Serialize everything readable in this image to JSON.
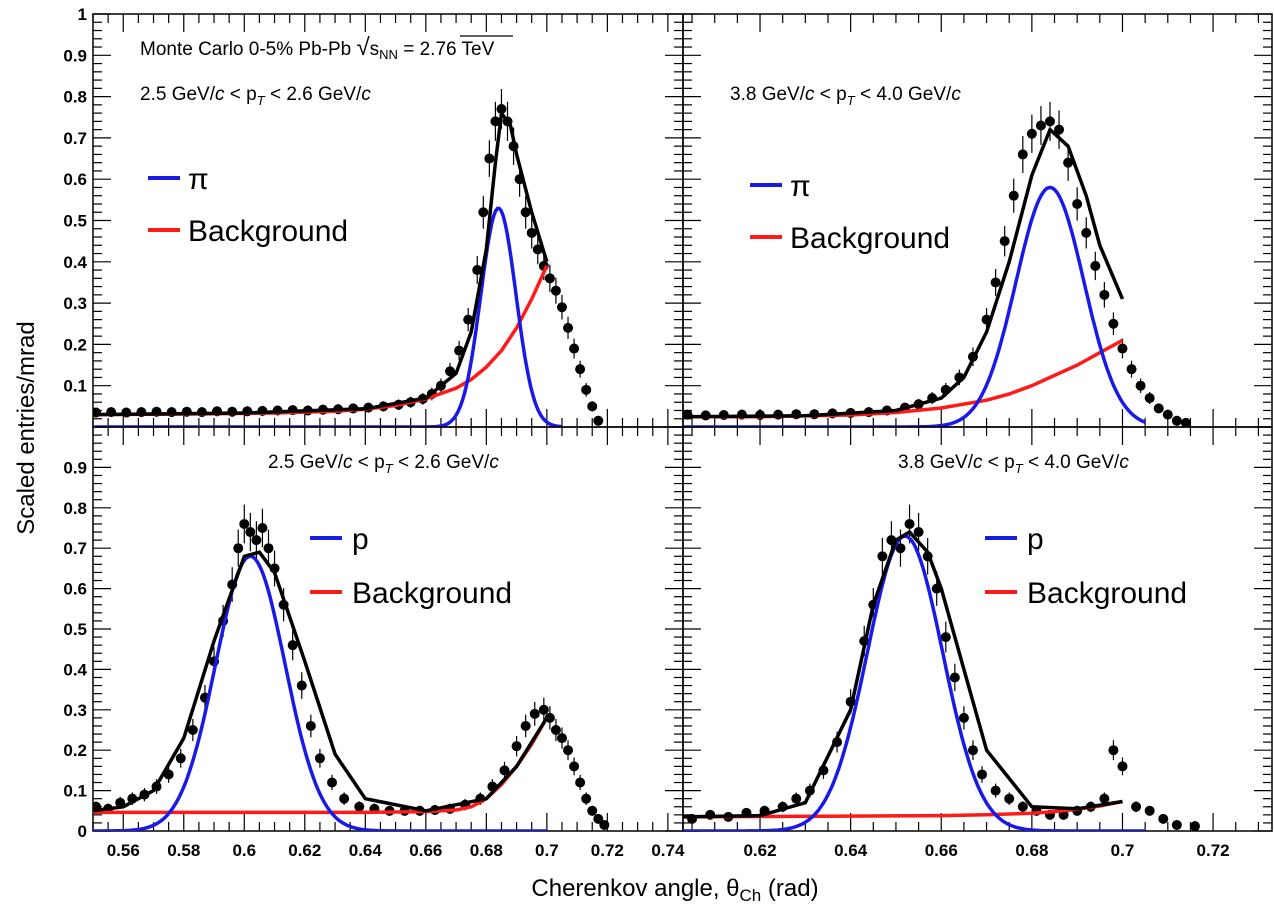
{
  "figure": {
    "ylabel": "Scaled entries/mrad",
    "xlabel_main": "Cherenkov angle, θ",
    "xlabel_sub": "Ch",
    "xlabel_unit": " (rad)",
    "ylim": [
      0,
      1.0
    ],
    "colors": {
      "data": "#000000",
      "signal": "#1a1ae6",
      "background": "#ff1a1a",
      "total": "#000000"
    }
  },
  "header": {
    "line1_prefix": "Monte Carlo 0-5% Pb-Pb ",
    "line1_sqrt": "√",
    "line1_s": "s",
    "line1_sub": "NN",
    "line1_suffix": " = 2.76 TeV"
  },
  "chart_data": [
    {
      "type": "scatter",
      "panel": "top-left",
      "annotation": {
        "prefix": "2.5 GeV/",
        "c1": "c",
        "mid": " < p",
        "sub": "T",
        "mid2": " < 2.6 GeV/",
        "c2": "c"
      },
      "legend": [
        {
          "label": "π",
          "color": "#1a1ae6"
        },
        {
          "label": "Background",
          "color": "#ff1a1a"
        }
      ],
      "xlim": [
        0.55,
        0.745
      ],
      "ylim": [
        0,
        1.0
      ],
      "xticks": [
        0.56,
        0.58,
        0.6,
        0.62,
        0.64,
        0.66,
        0.68,
        0.7,
        0.72,
        0.74
      ],
      "xticklabels": [
        "0.56",
        "0.58",
        "0.6",
        "0.62",
        "0.64",
        "0.66",
        "0.68",
        "0.7",
        "0.72",
        "0.74"
      ],
      "yticks": [
        0.1,
        0.2,
        0.3,
        0.4,
        0.5,
        0.6,
        0.7,
        0.8,
        0.9,
        1.0
      ],
      "yticklabels": [
        "0.1",
        "0.2",
        "0.3",
        "0.4",
        "0.5",
        "0.6",
        "0.7",
        "0.8",
        "0.9",
        "1"
      ],
      "series": [
        {
          "role": "data",
          "x": [
            0.551,
            0.556,
            0.561,
            0.566,
            0.571,
            0.576,
            0.581,
            0.586,
            0.591,
            0.596,
            0.601,
            0.606,
            0.611,
            0.616,
            0.621,
            0.626,
            0.631,
            0.636,
            0.641,
            0.646,
            0.651,
            0.655,
            0.659,
            0.662,
            0.665,
            0.668,
            0.671,
            0.674,
            0.677,
            0.679,
            0.681,
            0.683,
            0.685,
            0.687,
            0.689,
            0.691,
            0.693,
            0.695,
            0.697,
            0.699,
            0.701,
            0.703,
            0.705,
            0.707,
            0.709,
            0.711,
            0.713,
            0.715,
            0.717
          ],
          "y": [
            0.035,
            0.036,
            0.035,
            0.036,
            0.037,
            0.036,
            0.037,
            0.036,
            0.038,
            0.037,
            0.038,
            0.039,
            0.04,
            0.041,
            0.04,
            0.042,
            0.043,
            0.045,
            0.047,
            0.05,
            0.054,
            0.06,
            0.068,
            0.08,
            0.1,
            0.135,
            0.185,
            0.26,
            0.38,
            0.52,
            0.65,
            0.74,
            0.77,
            0.74,
            0.68,
            0.6,
            0.52,
            0.47,
            0.43,
            0.39,
            0.36,
            0.33,
            0.29,
            0.24,
            0.19,
            0.14,
            0.09,
            0.05,
            0.015
          ]
        },
        {
          "role": "background",
          "x": [
            0.55,
            0.57,
            0.59,
            0.61,
            0.63,
            0.64,
            0.65,
            0.66,
            0.67,
            0.675,
            0.68,
            0.685,
            0.69,
            0.695,
            0.7
          ],
          "y": [
            0.03,
            0.031,
            0.032,
            0.034,
            0.038,
            0.043,
            0.052,
            0.068,
            0.094,
            0.115,
            0.145,
            0.185,
            0.24,
            0.31,
            0.39
          ]
        },
        {
          "role": "signal",
          "name": "π",
          "mean": 0.684,
          "sigma": 0.0058,
          "amplitude": 0.53,
          "range": [
            0.55,
            0.705
          ]
        },
        {
          "role": "total",
          "x": [
            0.55,
            0.6,
            0.64,
            0.66,
            0.67,
            0.675,
            0.68,
            0.683,
            0.685,
            0.688,
            0.69,
            0.695,
            0.7
          ],
          "y": [
            0.03,
            0.034,
            0.044,
            0.07,
            0.13,
            0.23,
            0.43,
            0.64,
            0.76,
            0.73,
            0.66,
            0.52,
            0.4
          ]
        }
      ]
    },
    {
      "type": "scatter",
      "panel": "top-right",
      "annotation": {
        "prefix": "3.8 GeV/",
        "c1": "c",
        "mid": " < p",
        "sub": "T",
        "mid2": " < 4.0 GeV/",
        "c2": "c"
      },
      "legend": [
        {
          "label": "π",
          "color": "#1a1ae6"
        },
        {
          "label": "Background",
          "color": "#ff1a1a"
        }
      ],
      "xlim": [
        0.603,
        0.733
      ],
      "ylim": [
        0,
        1.0
      ],
      "xticks": [
        0.62,
        0.64,
        0.66,
        0.68,
        0.7,
        0.72
      ],
      "xticklabels": [
        "0.62",
        "0.64",
        "0.66",
        "0.68",
        "0.7",
        "0.72"
      ],
      "yticks": [
        0.1,
        0.2,
        0.3,
        0.4,
        0.5,
        0.6,
        0.7,
        0.8,
        0.9,
        1.0
      ],
      "yticklabels": [],
      "series": [
        {
          "role": "data",
          "x": [
            0.604,
            0.608,
            0.612,
            0.616,
            0.62,
            0.624,
            0.628,
            0.632,
            0.636,
            0.64,
            0.644,
            0.648,
            0.652,
            0.655,
            0.658,
            0.661,
            0.664,
            0.667,
            0.67,
            0.672,
            0.674,
            0.676,
            0.678,
            0.68,
            0.682,
            0.684,
            0.686,
            0.688,
            0.69,
            0.692,
            0.694,
            0.696,
            0.698,
            0.7,
            0.702,
            0.704,
            0.706,
            0.708,
            0.71,
            0.712,
            0.714
          ],
          "y": [
            0.03,
            0.028,
            0.029,
            0.03,
            0.029,
            0.03,
            0.031,
            0.031,
            0.033,
            0.034,
            0.036,
            0.04,
            0.047,
            0.055,
            0.07,
            0.09,
            0.12,
            0.17,
            0.26,
            0.35,
            0.45,
            0.56,
            0.66,
            0.71,
            0.73,
            0.74,
            0.72,
            0.64,
            0.54,
            0.47,
            0.39,
            0.32,
            0.25,
            0.19,
            0.14,
            0.1,
            0.07,
            0.045,
            0.03,
            0.015,
            0.01
          ]
        },
        {
          "role": "background",
          "x": [
            0.603,
            0.62,
            0.64,
            0.65,
            0.66,
            0.67,
            0.675,
            0.68,
            0.685,
            0.69,
            0.695,
            0.7
          ],
          "y": [
            0.025,
            0.025,
            0.029,
            0.035,
            0.046,
            0.065,
            0.08,
            0.1,
            0.125,
            0.15,
            0.18,
            0.21
          ]
        },
        {
          "role": "signal",
          "name": "π",
          "mean": 0.684,
          "sigma": 0.0075,
          "amplitude": 0.58,
          "range": [
            0.603,
            0.705
          ]
        },
        {
          "role": "total",
          "x": [
            0.603,
            0.63,
            0.65,
            0.66,
            0.665,
            0.67,
            0.675,
            0.68,
            0.684,
            0.688,
            0.692,
            0.695,
            0.7
          ],
          "y": [
            0.025,
            0.027,
            0.04,
            0.07,
            0.12,
            0.23,
            0.4,
            0.61,
            0.72,
            0.68,
            0.56,
            0.44,
            0.31
          ]
        }
      ]
    },
    {
      "type": "scatter",
      "panel": "bottom-left",
      "annotation": {
        "prefix": "2.5 GeV/",
        "c1": "c",
        "mid": " < p",
        "sub": "T",
        "mid2": " < 2.6 GeV/",
        "c2": "c"
      },
      "legend": [
        {
          "label": "p",
          "color": "#1a1ae6"
        },
        {
          "label": "Background",
          "color": "#ff1a1a"
        }
      ],
      "xlim": [
        0.55,
        0.745
      ],
      "ylim": [
        0,
        1.0
      ],
      "xticks": [
        0.56,
        0.58,
        0.6,
        0.62,
        0.64,
        0.66,
        0.68,
        0.7,
        0.72,
        0.74
      ],
      "xticklabels": [
        "0.56",
        "0.58",
        "0.6",
        "0.62",
        "0.64",
        "0.66",
        "0.68",
        "0.7",
        "0.72",
        "0.74"
      ],
      "yticks": [
        0,
        0.1,
        0.2,
        0.3,
        0.4,
        0.5,
        0.6,
        0.7,
        0.8,
        0.9
      ],
      "yticklabels": [
        "0",
        "0.1",
        "0.2",
        "0.3",
        "0.4",
        "0.5",
        "0.6",
        "0.7",
        "0.8",
        "0.9"
      ],
      "series": [
        {
          "role": "data",
          "x": [
            0.551,
            0.555,
            0.559,
            0.563,
            0.567,
            0.571,
            0.575,
            0.579,
            0.583,
            0.587,
            0.59,
            0.593,
            0.596,
            0.598,
            0.6,
            0.602,
            0.604,
            0.606,
            0.608,
            0.61,
            0.613,
            0.616,
            0.619,
            0.622,
            0.625,
            0.629,
            0.633,
            0.638,
            0.643,
            0.648,
            0.653,
            0.658,
            0.663,
            0.668,
            0.673,
            0.678,
            0.682,
            0.686,
            0.69,
            0.693,
            0.696,
            0.699,
            0.701,
            0.703,
            0.705,
            0.707,
            0.709,
            0.711,
            0.713,
            0.715,
            0.717,
            0.719
          ],
          "y": [
            0.06,
            0.055,
            0.07,
            0.08,
            0.09,
            0.11,
            0.14,
            0.18,
            0.25,
            0.33,
            0.42,
            0.52,
            0.61,
            0.7,
            0.76,
            0.74,
            0.72,
            0.75,
            0.7,
            0.65,
            0.56,
            0.46,
            0.36,
            0.26,
            0.18,
            0.12,
            0.08,
            0.06,
            0.055,
            0.05,
            0.05,
            0.05,
            0.052,
            0.055,
            0.065,
            0.08,
            0.11,
            0.15,
            0.21,
            0.26,
            0.29,
            0.3,
            0.28,
            0.25,
            0.23,
            0.2,
            0.16,
            0.12,
            0.08,
            0.05,
            0.03,
            0.015
          ]
        },
        {
          "role": "background",
          "x": [
            0.55,
            0.6,
            0.64,
            0.66,
            0.67,
            0.675,
            0.68,
            0.685,
            0.69,
            0.695,
            0.7
          ],
          "y": [
            0.046,
            0.046,
            0.046,
            0.048,
            0.052,
            0.06,
            0.08,
            0.115,
            0.16,
            0.215,
            0.28
          ]
        },
        {
          "role": "signal",
          "name": "p",
          "mean": 0.602,
          "sigma": 0.0115,
          "amplitude": 0.68,
          "range": [
            0.55,
            0.7
          ]
        },
        {
          "role": "total",
          "x": [
            0.55,
            0.56,
            0.57,
            0.58,
            0.59,
            0.6,
            0.605,
            0.61,
            0.62,
            0.63,
            0.64,
            0.66,
            0.68,
            0.69,
            0.7
          ],
          "y": [
            0.05,
            0.06,
            0.1,
            0.23,
            0.47,
            0.68,
            0.69,
            0.64,
            0.42,
            0.19,
            0.08,
            0.05,
            0.08,
            0.16,
            0.28
          ]
        }
      ]
    },
    {
      "type": "scatter",
      "panel": "bottom-right",
      "annotation": {
        "prefix": "3.8 GeV/",
        "c1": "c",
        "mid": " < p",
        "sub": "T",
        "mid2": " < 4.0 GeV/",
        "c2": "c"
      },
      "legend": [
        {
          "label": "p",
          "color": "#1a1ae6"
        },
        {
          "label": "Background",
          "color": "#ff1a1a"
        }
      ],
      "xlim": [
        0.603,
        0.733
      ],
      "ylim": [
        0,
        1.0
      ],
      "xticks": [
        0.62,
        0.64,
        0.66,
        0.68,
        0.7,
        0.72
      ],
      "xticklabels": [
        "0.62",
        "0.64",
        "0.66",
        "0.68",
        "0.7",
        "0.72"
      ],
      "yticks": [
        0,
        0.1,
        0.2,
        0.3,
        0.4,
        0.5,
        0.6,
        0.7,
        0.8,
        0.9
      ],
      "yticklabels": [],
      "series": [
        {
          "role": "data",
          "x": [
            0.605,
            0.609,
            0.613,
            0.617,
            0.621,
            0.625,
            0.628,
            0.631,
            0.634,
            0.637,
            0.64,
            0.643,
            0.645,
            0.647,
            0.649,
            0.651,
            0.653,
            0.655,
            0.657,
            0.659,
            0.661,
            0.663,
            0.665,
            0.667,
            0.669,
            0.672,
            0.675,
            0.678,
            0.681,
            0.684,
            0.687,
            0.69,
            0.693,
            0.696,
            0.698,
            0.7,
            0.703,
            0.706,
            0.709,
            0.712,
            0.716
          ],
          "y": [
            0.03,
            0.04,
            0.035,
            0.045,
            0.05,
            0.06,
            0.08,
            0.1,
            0.15,
            0.22,
            0.32,
            0.47,
            0.56,
            0.68,
            0.72,
            0.7,
            0.76,
            0.74,
            0.68,
            0.6,
            0.48,
            0.38,
            0.28,
            0.2,
            0.14,
            0.1,
            0.08,
            0.06,
            0.05,
            0.04,
            0.04,
            0.05,
            0.06,
            0.08,
            0.2,
            0.16,
            0.06,
            0.05,
            0.03,
            0.015,
            0.012
          ]
        },
        {
          "role": "background",
          "x": [
            0.603,
            0.62,
            0.64,
            0.66,
            0.67,
            0.68,
            0.685,
            0.69,
            0.695,
            0.7
          ],
          "y": [
            0.035,
            0.036,
            0.037,
            0.038,
            0.04,
            0.044,
            0.048,
            0.054,
            0.062,
            0.073
          ]
        },
        {
          "role": "signal",
          "name": "p",
          "mean": 0.652,
          "sigma": 0.0083,
          "amplitude": 0.73,
          "range": [
            0.603,
            0.705
          ]
        },
        {
          "role": "total",
          "x": [
            0.603,
            0.62,
            0.63,
            0.64,
            0.645,
            0.65,
            0.653,
            0.657,
            0.66,
            0.665,
            0.67,
            0.68,
            0.69,
            0.7
          ],
          "y": [
            0.035,
            0.038,
            0.07,
            0.3,
            0.56,
            0.72,
            0.74,
            0.69,
            0.6,
            0.4,
            0.2,
            0.06,
            0.055,
            0.073
          ]
        }
      ]
    }
  ]
}
